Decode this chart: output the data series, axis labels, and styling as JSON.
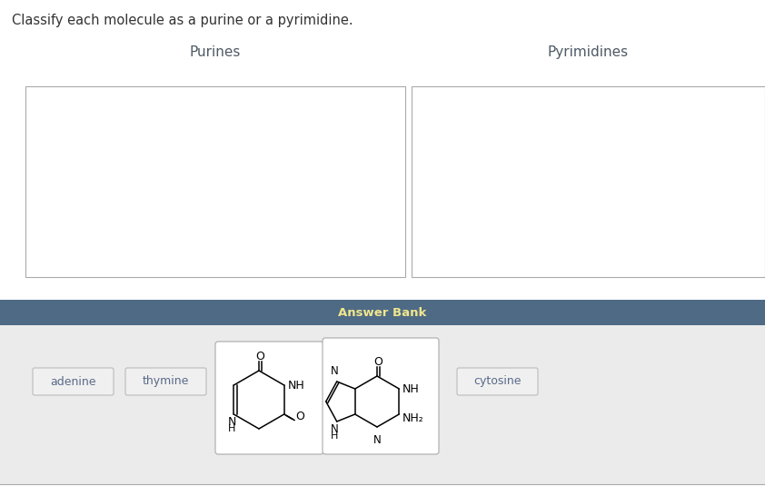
{
  "title": "Classify each molecule as a purine or a pyrimidine.",
  "title_color": "#333333",
  "title_fontsize": 10.5,
  "purines_label": "Purines",
  "pyrimidines_label": "Pyrimidines",
  "answer_bank_label": "Answer Bank",
  "answer_bank_bg": "#4e6a85",
  "answer_bank_text_color": "#f0e68c",
  "drop_box_bg": "#ffffff",
  "drop_box_border": "#aaaaaa",
  "lower_panel_bg": "#ebebeb",
  "label_color": "#4e5a65",
  "button_text_color": "#5a6a8a",
  "button_border": "#bbbbbb",
  "button_bg": "#f0f0f0",
  "bg_color": "#ffffff"
}
